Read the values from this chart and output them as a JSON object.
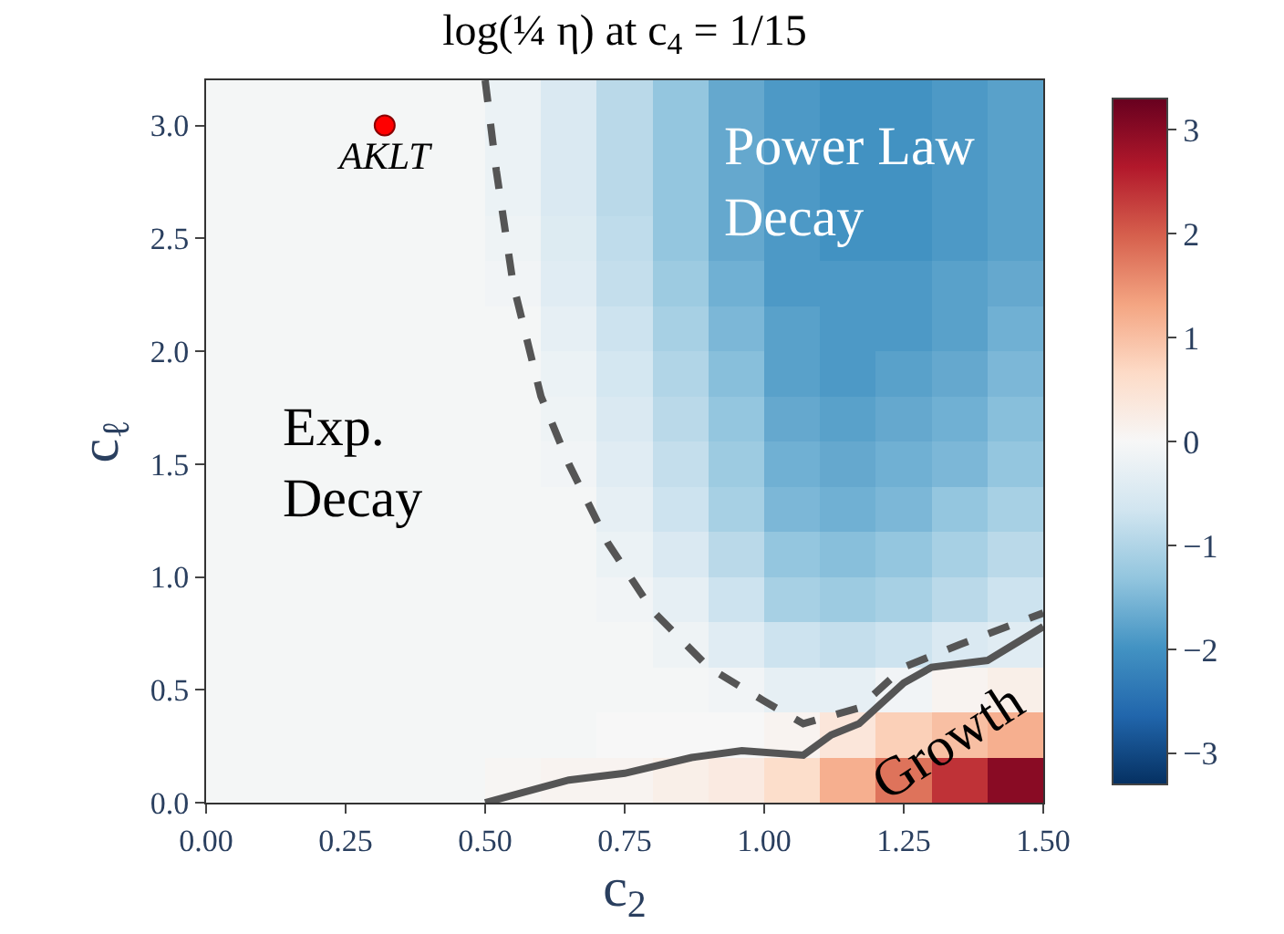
{
  "chart_data": {
    "type": "heatmap",
    "title": "log(¼ η) at c$_{4}$ = 1/15",
    "xlabel": "c$_{2}$",
    "ylabel": "c$_{ℓ}$",
    "x": [
      0.05,
      0.15,
      0.25,
      0.35,
      0.45,
      0.55,
      0.65,
      0.75,
      0.85,
      0.95,
      1.05,
      1.15,
      1.25,
      1.35,
      1.45
    ],
    "y": [
      3.1,
      2.9,
      2.7,
      2.5,
      2.3,
      2.1,
      1.9,
      1.7,
      1.5,
      1.3,
      1.1,
      0.9,
      0.7,
      0.5,
      0.3,
      0.1
    ],
    "cells": [
      [
        -0.05,
        -0.05,
        -0.05,
        -0.05,
        -0.05,
        -0.2,
        -0.5,
        -0.9,
        -1.3,
        -1.7,
        -1.9,
        -2.0,
        -2.0,
        -1.9,
        -1.8
      ],
      [
        -0.05,
        -0.05,
        -0.05,
        -0.05,
        -0.05,
        -0.2,
        -0.5,
        -0.9,
        -1.3,
        -1.7,
        -1.9,
        -2.0,
        -2.0,
        -1.9,
        -1.8
      ],
      [
        -0.05,
        -0.05,
        -0.05,
        -0.05,
        -0.05,
        -0.2,
        -0.5,
        -0.9,
        -1.3,
        -1.7,
        -1.9,
        -2.0,
        -2.0,
        -1.9,
        -1.8
      ],
      [
        -0.05,
        -0.05,
        -0.05,
        -0.05,
        -0.05,
        -0.15,
        -0.45,
        -0.85,
        -1.3,
        -1.7,
        -1.9,
        -2.0,
        -2.0,
        -1.9,
        -1.8
      ],
      [
        -0.05,
        -0.05,
        -0.05,
        -0.05,
        -0.05,
        -0.1,
        -0.4,
        -0.8,
        -1.2,
        -1.6,
        -1.9,
        -1.9,
        -1.9,
        -1.8,
        -1.7
      ],
      [
        -0.05,
        -0.05,
        -0.05,
        -0.05,
        -0.05,
        -0.05,
        -0.3,
        -0.7,
        -1.1,
        -1.5,
        -1.8,
        -1.9,
        -1.9,
        -1.8,
        -1.6
      ],
      [
        -0.05,
        -0.05,
        -0.05,
        -0.05,
        -0.05,
        -0.05,
        -0.2,
        -0.6,
        -1.0,
        -1.4,
        -1.8,
        -1.9,
        -1.8,
        -1.7,
        -1.5
      ],
      [
        -0.05,
        -0.05,
        -0.05,
        -0.05,
        -0.05,
        -0.05,
        -0.15,
        -0.5,
        -0.9,
        -1.3,
        -1.7,
        -1.8,
        -1.7,
        -1.6,
        -1.4
      ],
      [
        -0.05,
        -0.05,
        -0.05,
        -0.05,
        -0.05,
        -0.05,
        -0.1,
        -0.4,
        -0.8,
        -1.2,
        -1.6,
        -1.7,
        -1.6,
        -1.5,
        -1.3
      ],
      [
        -0.05,
        -0.05,
        -0.05,
        -0.05,
        -0.05,
        -0.05,
        -0.05,
        -0.3,
        -0.7,
        -1.1,
        -1.5,
        -1.6,
        -1.5,
        -1.3,
        -1.1
      ],
      [
        -0.05,
        -0.05,
        -0.05,
        -0.05,
        -0.05,
        -0.05,
        -0.05,
        -0.2,
        -0.5,
        -0.9,
        -1.3,
        -1.4,
        -1.3,
        -1.1,
        -0.9
      ],
      [
        -0.05,
        -0.05,
        -0.05,
        -0.05,
        -0.05,
        -0.05,
        -0.05,
        -0.1,
        -0.3,
        -0.7,
        -1.1,
        -1.2,
        -1.1,
        -0.9,
        -0.7
      ],
      [
        -0.05,
        -0.05,
        -0.05,
        -0.05,
        -0.05,
        -0.05,
        -0.05,
        -0.05,
        -0.15,
        -0.4,
        -0.7,
        -0.8,
        -0.7,
        -0.5,
        -0.4
      ],
      [
        -0.05,
        -0.05,
        -0.05,
        -0.05,
        -0.05,
        -0.05,
        -0.05,
        -0.05,
        -0.05,
        -0.1,
        -0.3,
        -0.3,
        -0.1,
        0.1,
        0.2
      ],
      [
        -0.05,
        -0.05,
        -0.05,
        -0.05,
        -0.05,
        -0.05,
        -0.05,
        0.0,
        0.0,
        0.0,
        0.1,
        0.4,
        0.8,
        1.0,
        1.2
      ],
      [
        -0.05,
        -0.05,
        -0.05,
        -0.05,
        -0.05,
        0.05,
        0.1,
        0.1,
        0.2,
        0.3,
        0.6,
        1.2,
        1.8,
        2.4,
        3.0
      ]
    ],
    "clim": [
      -3.3,
      3.3
    ],
    "cticks": [
      -3,
      -2,
      -1,
      0,
      1,
      2,
      3
    ],
    "xlim": [
      0,
      1.5
    ],
    "ylim": [
      0,
      3.2
    ],
    "xticks": [
      {
        "value": 0,
        "label": "0.00"
      },
      {
        "value": 0.25,
        "label": "0.25"
      },
      {
        "value": 0.5,
        "label": "0.50"
      },
      {
        "value": 0.75,
        "label": "0.75"
      },
      {
        "value": 1,
        "label": "1.00"
      },
      {
        "value": 1.25,
        "label": "1.25"
      },
      {
        "value": 1.5,
        "label": "1.50"
      }
    ],
    "yticks": [
      {
        "value": 0,
        "label": "0.0"
      },
      {
        "value": 0.5,
        "label": "0.5"
      },
      {
        "value": 1,
        "label": "1.0"
      },
      {
        "value": 1.5,
        "label": "1.5"
      },
      {
        "value": 2,
        "label": "2.0"
      },
      {
        "value": 2.5,
        "label": "2.5"
      },
      {
        "value": 3,
        "label": "3.0"
      }
    ],
    "series": [
      {
        "type": "line",
        "line_style": "dashed",
        "color": "#555555",
        "x": [
          0.5,
          0.52,
          0.55,
          0.6,
          0.65,
          0.72,
          0.8,
          0.9,
          1.0,
          1.07,
          1.17,
          1.25,
          1.35,
          1.5
        ],
        "values": [
          3.2,
          2.8,
          2.3,
          1.8,
          1.5,
          1.15,
          0.85,
          0.6,
          0.45,
          0.35,
          0.42,
          0.6,
          0.7,
          0.84
        ]
      },
      {
        "type": "line",
        "line_style": "solid",
        "color": "#555555",
        "x": [
          0.5,
          0.65,
          0.75,
          0.87,
          0.96,
          1.07,
          1.12,
          1.17,
          1.25,
          1.3,
          1.4,
          1.5
        ],
        "values": [
          0,
          0.1,
          0.13,
          0.2,
          0.23,
          0.21,
          0.3,
          0.35,
          0.53,
          0.6,
          0.63,
          0.78
        ]
      },
      {
        "type": "scatter",
        "marker": "circle",
        "name": "AKLT",
        "color": "#ff0000",
        "x": [
          0.32
        ],
        "values": [
          3.0
        ]
      }
    ],
    "annotations": [
      "Exp.\nDecay",
      "Power Law\nDecay",
      "Growth"
    ]
  }
}
